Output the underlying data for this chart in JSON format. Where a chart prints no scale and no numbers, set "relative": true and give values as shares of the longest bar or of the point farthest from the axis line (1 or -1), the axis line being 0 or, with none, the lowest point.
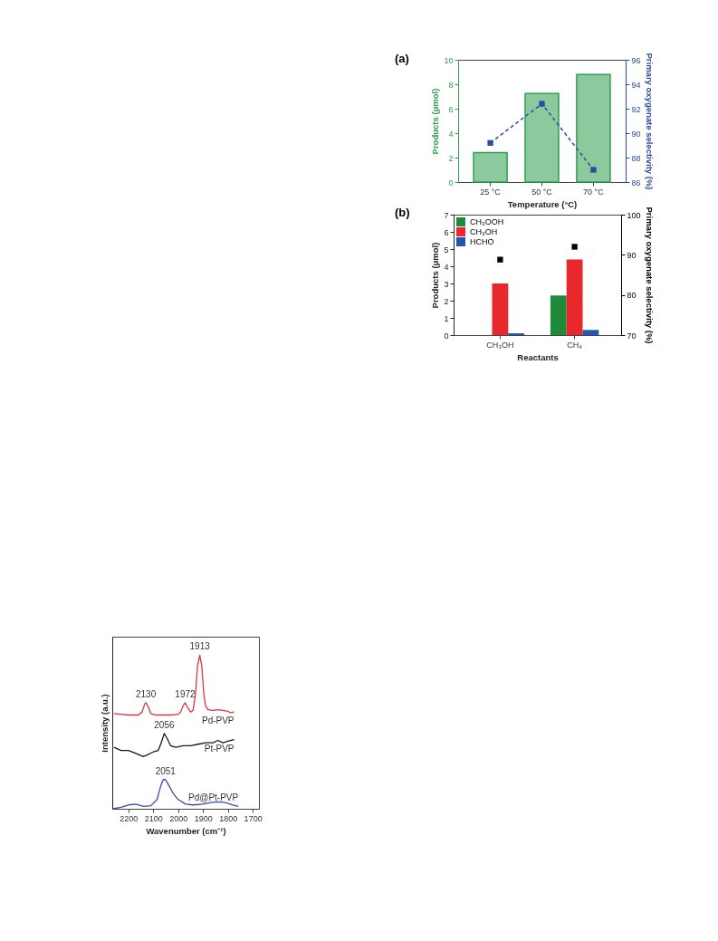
{
  "chart_data": [
    {
      "type": "bar",
      "title": "(a)",
      "categories": [
        "25 °C",
        "50 °C",
        "70 °C"
      ],
      "xlabel": "Temperature (°C)",
      "ylabel": "Products (μmol)",
      "y2label": "Primary oxygenate selectivity (%)",
      "ylim": [
        0,
        10
      ],
      "yticks": [
        0,
        2,
        4,
        6,
        8,
        10
      ],
      "y2lim": [
        86,
        96
      ],
      "y2ticks": [
        86,
        88,
        90,
        92,
        94,
        96
      ],
      "grid": false,
      "legend": false,
      "series": [
        {
          "color": "#2e9e4f",
          "values": [
            2.4,
            7.25,
            8.8
          ]
        },
        {
          "type": "line",
          "axis": "y2",
          "color": "#2a4aa8",
          "marker": "square",
          "line_style": "dashed",
          "values": [
            89.2,
            92.4,
            87.0
          ]
        }
      ]
    },
    {
      "type": "bar",
      "title": "(b)",
      "categories": [
        "CH₃OH",
        "CH₄"
      ],
      "xlabel": "Reactants",
      "ylabel": "Products (μmol)",
      "y2label": "Primary oxygenate selectivity (%)",
      "ylim": [
        0,
        7
      ],
      "yticks": [
        0,
        1,
        2,
        3,
        4,
        5,
        6,
        7
      ],
      "y2lim": [
        70,
        100
      ],
      "y2ticks": [
        70,
        80,
        90,
        100
      ],
      "grid": false,
      "legend": "top left",
      "series": [
        {
          "name": "CH₃OOH",
          "color": "#1f8a3c",
          "values": [
            0,
            2.3
          ]
        },
        {
          "name": "CH₃OH",
          "color": "#e8282c",
          "values": [
            3.0,
            4.4
          ]
        },
        {
          "name": "HCHO",
          "color": "#2456b0",
          "values": [
            0.1,
            0.3
          ]
        },
        {
          "type": "scatter",
          "axis": "y2",
          "color": "#000000",
          "marker": "square",
          "values": [
            88.8,
            92.0
          ]
        }
      ]
    },
    {
      "type": "line",
      "relative": true,
      "xlabel": "Wavenumber (cm⁻¹)",
      "ylabel": "Intensity (a.u.)",
      "xlim": [
        2265,
        1675
      ],
      "xticks": [
        2200,
        2100,
        2000,
        1900,
        1800,
        1700
      ],
      "tick_labels": "x",
      "grid": false,
      "legend": false,
      "annotations": [
        {
          "text": "2130",
          "x": 2130,
          "y": 0.69
        },
        {
          "text": "1972",
          "x": 1972,
          "y": 0.69
        },
        {
          "text": "1913",
          "x": 1913,
          "y": 1.0
        },
        {
          "text": "2056",
          "x": 2056,
          "y": 0.49
        },
        {
          "text": "2051",
          "x": 2051,
          "y": 0.19
        }
      ],
      "series": [
        {
          "name": "Pd-PVP",
          "color": "#d9363e",
          "x": [
            2258,
            2230,
            2200,
            2160,
            2145,
            2135,
            2130,
            2122,
            2110,
            2090,
            2060,
            2030,
            2000,
            1990,
            1980,
            1972,
            1962,
            1950,
            1940,
            1930,
            1922,
            1913,
            1905,
            1897,
            1890,
            1880,
            1860,
            1840,
            1820,
            1800,
            1790,
            1775
          ],
          "values": [
            0.62,
            0.615,
            0.61,
            0.61,
            0.63,
            0.68,
            0.69,
            0.67,
            0.62,
            0.61,
            0.61,
            0.61,
            0.615,
            0.63,
            0.67,
            0.69,
            0.66,
            0.63,
            0.64,
            0.75,
            0.93,
            1.0,
            0.93,
            0.75,
            0.67,
            0.645,
            0.64,
            0.645,
            0.64,
            0.635,
            0.625,
            0.63
          ]
        },
        {
          "name": "Pt-PVP",
          "color": "#1a1a1a",
          "x": [
            2258,
            2230,
            2200,
            2170,
            2140,
            2125,
            2100,
            2080,
            2068,
            2056,
            2045,
            2030,
            2010,
            1980,
            1950,
            1920,
            1890,
            1860,
            1840,
            1820,
            1800,
            1775
          ],
          "values": [
            0.4,
            0.38,
            0.38,
            0.36,
            0.34,
            0.35,
            0.37,
            0.38,
            0.43,
            0.49,
            0.46,
            0.41,
            0.4,
            0.41,
            0.41,
            0.42,
            0.43,
            0.43,
            0.445,
            0.43,
            0.44,
            0.45
          ]
        },
        {
          "name": "Pd@Pt-PVP",
          "color": "#3a4bb0",
          "x": [
            2262,
            2230,
            2200,
            2170,
            2140,
            2110,
            2085,
            2070,
            2060,
            2051,
            2040,
            2020,
            2000,
            1970,
            1940,
            1900,
            1870,
            1840,
            1810,
            1780,
            1758
          ],
          "values": [
            0,
            0.01,
            0.025,
            0.03,
            0.015,
            0.02,
            0.06,
            0.15,
            0.19,
            0.19,
            0.16,
            0.1,
            0.06,
            0.03,
            0.025,
            0.03,
            0.04,
            0.045,
            0.04,
            0.025,
            0.015
          ]
        }
      ]
    }
  ]
}
